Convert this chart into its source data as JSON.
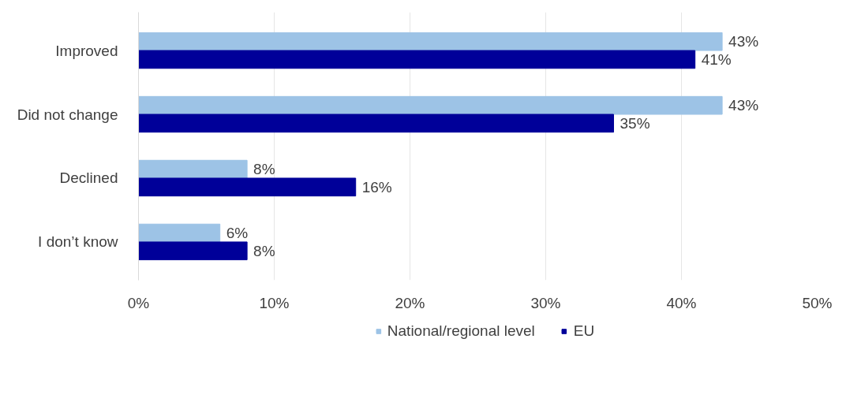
{
  "chart_data": {
    "type": "bar",
    "orientation": "horizontal",
    "categories": [
      "Improved",
      "Did not change",
      "Declined",
      "I don’t know"
    ],
    "series": [
      {
        "name": "National/regional level",
        "color": "#9dc3e6",
        "values": [
          43,
          43,
          8,
          6
        ],
        "value_labels": [
          "43%",
          "43%",
          "8%",
          "6%"
        ]
      },
      {
        "name": "EU",
        "color": "#000099",
        "values": [
          41,
          35,
          16,
          8
        ],
        "value_labels": [
          "41%",
          "35%",
          "16%",
          "8%"
        ]
      }
    ],
    "xlim": [
      0,
      50
    ],
    "xticks": [
      {
        "value": 0,
        "label": "0%"
      },
      {
        "value": 10,
        "label": "10%"
      },
      {
        "value": 20,
        "label": "20%"
      },
      {
        "value": 30,
        "label": "30%"
      },
      {
        "value": 40,
        "label": "40%"
      },
      {
        "value": 50,
        "label": "50%"
      }
    ],
    "grid": "x",
    "legend": "bottom"
  }
}
